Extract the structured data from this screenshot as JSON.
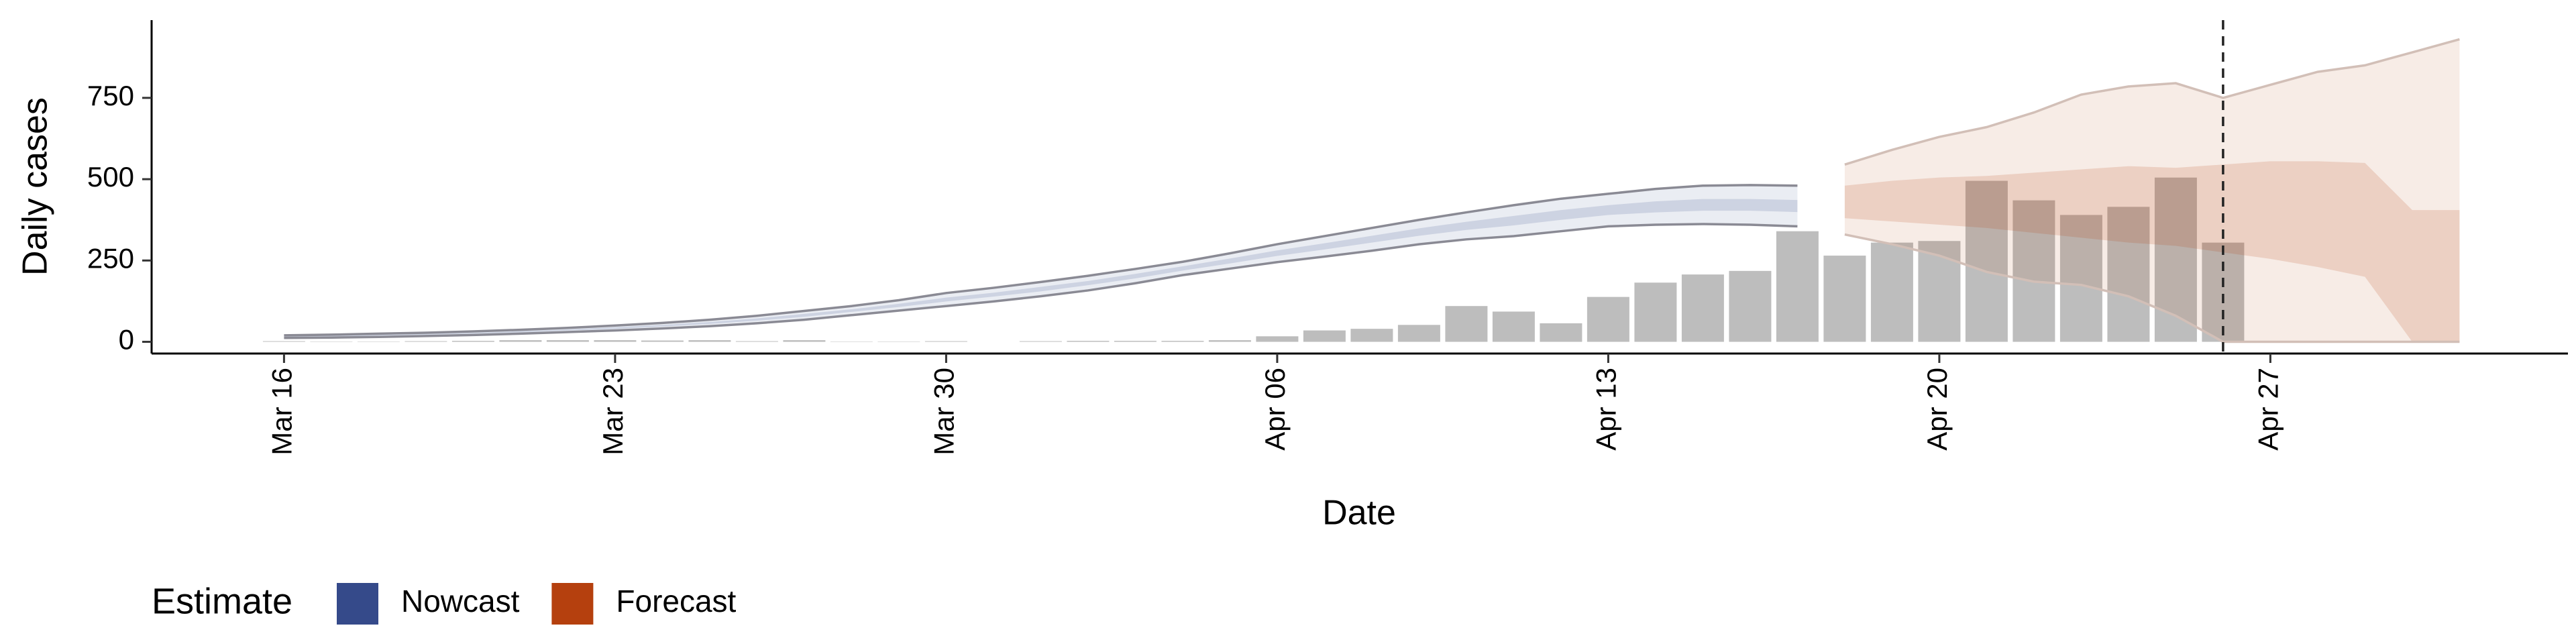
{
  "chart_data": {
    "type": "combo",
    "y_label": "Daily cases",
    "x_label": "Date",
    "legend_title": "Estimate",
    "categories": [
      "Mar 16",
      "Mar 17",
      "Mar 18",
      "Mar 19",
      "Mar 20",
      "Mar 21",
      "Mar 22",
      "Mar 23",
      "Mar 24",
      "Mar 25",
      "Mar 26",
      "Mar 27",
      "Mar 28",
      "Mar 29",
      "Mar 30",
      "Mar 31",
      "Apr 01",
      "Apr 02",
      "Apr 03",
      "Apr 04",
      "Apr 05",
      "Apr 06",
      "Apr 07",
      "Apr 08",
      "Apr 09",
      "Apr 10",
      "Apr 11",
      "Apr 12",
      "Apr 13",
      "Apr 14",
      "Apr 15",
      "Apr 16",
      "Apr 17",
      "Apr 18",
      "Apr 19",
      "Apr 20",
      "Apr 21",
      "Apr 22",
      "Apr 23",
      "Apr 24",
      "Apr 25",
      "Apr 26",
      "Apr 27",
      "Apr 28",
      "Apr 29",
      "Apr 30",
      "May 01"
    ],
    "xtick_step": 7,
    "ylim": [
      -36,
      989
    ],
    "yticks": [
      0,
      250,
      500,
      750
    ],
    "vline": "Apr 26",
    "series": [
      {
        "type": "bar",
        "color": "#bdbdbd",
        "values": [
          2,
          1,
          1,
          2,
          3,
          5,
          5,
          5,
          4,
          5,
          2,
          5,
          1,
          1,
          2,
          0,
          2,
          3,
          3,
          3,
          5,
          17,
          35,
          40,
          52,
          110,
          93,
          57,
          138,
          182,
          207,
          218,
          340,
          265,
          305,
          310,
          495,
          435,
          390,
          415,
          505,
          305,
          null,
          null,
          null,
          null,
          null
        ]
      },
      {
        "type": "band",
        "name": "Nowcast",
        "color": "#354a8a",
        "edge_color": "#8a8a94",
        "lower90": [
          12,
          13,
          15,
          18,
          21,
          25,
          30,
          35,
          41,
          48,
          57,
          68,
          82,
          96,
          110,
          124,
          140,
          158,
          180,
          205,
          225,
          245,
          262,
          280,
          300,
          315,
          325,
          340,
          355,
          360,
          362,
          360,
          355,
          null,
          null,
          null,
          null,
          null,
          null,
          null,
          null,
          null,
          null,
          null,
          null,
          null,
          null
        ],
        "upper90": [
          20,
          22,
          25,
          28,
          32,
          37,
          43,
          50,
          58,
          68,
          80,
          95,
          110,
          128,
          150,
          166,
          184,
          203,
          224,
          246,
          272,
          300,
          325,
          350,
          375,
          398,
          420,
          440,
          455,
          470,
          480,
          482,
          480,
          null,
          null,
          null,
          null,
          null,
          null,
          null,
          null,
          null,
          null,
          null,
          null,
          null,
          null
        ],
        "lower50": [
          15,
          16,
          19,
          22,
          25,
          29,
          35,
          40,
          47,
          55,
          65,
          77,
          92,
          107,
          124,
          139,
          155,
          174,
          195,
          219,
          241,
          264,
          284,
          305,
          326,
          344,
          358,
          375,
          390,
          398,
          403,
          403,
          399,
          null,
          null,
          null,
          null,
          null,
          null,
          null,
          null,
          null,
          null,
          null,
          null,
          null,
          null
        ],
        "upper50": [
          17,
          19,
          22,
          25,
          28,
          33,
          38,
          45,
          52,
          61,
          72,
          86,
          100,
          117,
          136,
          151,
          169,
          187,
          209,
          232,
          256,
          281,
          303,
          326,
          349,
          369,
          387,
          405,
          420,
          432,
          439,
          439,
          436,
          null,
          null,
          null,
          null,
          null,
          null,
          null,
          null,
          null,
          null,
          null,
          null,
          null,
          null
        ]
      },
      {
        "type": "band",
        "name": "Forecast",
        "color": "#b5400e",
        "edge_color": "#d2bfb7",
        "lower90": [
          null,
          null,
          null,
          null,
          null,
          null,
          null,
          null,
          null,
          null,
          null,
          null,
          null,
          null,
          null,
          null,
          null,
          null,
          null,
          null,
          null,
          null,
          null,
          null,
          null,
          null,
          null,
          null,
          null,
          null,
          null,
          null,
          null,
          330,
          300,
          265,
          215,
          185,
          175,
          140,
          80,
          0,
          0,
          0,
          0,
          0,
          0
        ],
        "upper90": [
          null,
          null,
          null,
          null,
          null,
          null,
          null,
          null,
          null,
          null,
          null,
          null,
          null,
          null,
          null,
          null,
          null,
          null,
          null,
          null,
          null,
          null,
          null,
          null,
          null,
          null,
          null,
          null,
          null,
          null,
          null,
          null,
          null,
          545,
          590,
          630,
          660,
          705,
          760,
          785,
          795,
          750,
          790,
          830,
          850,
          890,
          930
        ],
        "lower50": [
          null,
          null,
          null,
          null,
          null,
          null,
          null,
          null,
          null,
          null,
          null,
          null,
          null,
          null,
          null,
          null,
          null,
          null,
          null,
          null,
          null,
          null,
          null,
          null,
          null,
          null,
          null,
          null,
          null,
          null,
          null,
          null,
          null,
          380,
          370,
          360,
          350,
          335,
          320,
          305,
          295,
          275,
          255,
          230,
          200,
          0,
          0
        ],
        "upper50": [
          null,
          null,
          null,
          null,
          null,
          null,
          null,
          null,
          null,
          null,
          null,
          null,
          null,
          null,
          null,
          null,
          null,
          null,
          null,
          null,
          null,
          null,
          null,
          null,
          null,
          null,
          null,
          null,
          null,
          null,
          null,
          null,
          null,
          480,
          495,
          505,
          510,
          520,
          530,
          540,
          535,
          545,
          555,
          555,
          550,
          405,
          405
        ]
      }
    ]
  }
}
